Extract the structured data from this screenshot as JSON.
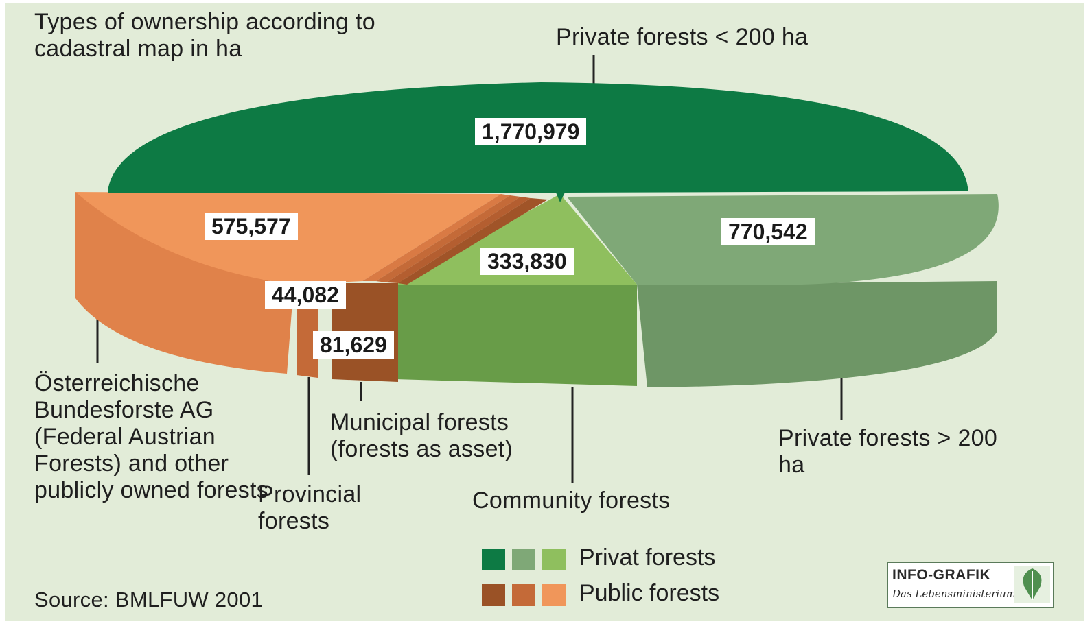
{
  "chart_data": {
    "type": "pie",
    "title": "Types of ownership according to cadastral map in ha",
    "unit": "ha",
    "slices": [
      {
        "name": "Private forests < 200 ha",
        "value": 1770979,
        "value_label": "1,770,979",
        "group": "Privat forests",
        "color": "#0d7a44"
      },
      {
        "name": "Private forests > 200 ha",
        "value": 770542,
        "value_label": "770,542",
        "group": "Privat forests",
        "color": "#7fa877"
      },
      {
        "name": "Community forests",
        "value": 333830,
        "value_label": "333,830",
        "group": "Privat forests",
        "color": "#8fbf5e"
      },
      {
        "name": "Municipal forests (forests as asset)",
        "value": 81629,
        "value_label": "81,629",
        "group": "Public forests",
        "color": "#9a5226"
      },
      {
        "name": "Provincial forests",
        "value": 44082,
        "value_label": "44,082",
        "group": "Public forests",
        "color": "#c46a38"
      },
      {
        "name": "Österreichische Bundesforste AG (Federal Austrian Forests) and other publicly owned forests",
        "value": 575577,
        "value_label": "575,577",
        "group": "Public forests",
        "color": "#f0965a"
      }
    ],
    "legend": [
      {
        "label": "Privat forests",
        "colors": [
          "#0d7a44",
          "#7fa877",
          "#8fbf5e"
        ]
      },
      {
        "label": "Public forests",
        "colors": [
          "#9a5226",
          "#c46a38",
          "#f0965a"
        ]
      }
    ],
    "legend_position": "bottom-center",
    "source": "Source: BMLFUW 2001"
  },
  "labels": {
    "title": "Types of ownership according to cadastral map in ha",
    "private_small": "Private forests < 200 ha",
    "private_big": "Private forests > 200 ha",
    "community": "Community forests",
    "municipal": "Municipal forests (forests as asset)",
    "provincial": "Provincial forests",
    "obf": "Österreichische Bundesforste AG (Federal Austrian Forests) and other publicly owned forests"
  },
  "logo": {
    "top": "INFO-GRAFIK",
    "bottom": "Das Lebensministerium"
  }
}
